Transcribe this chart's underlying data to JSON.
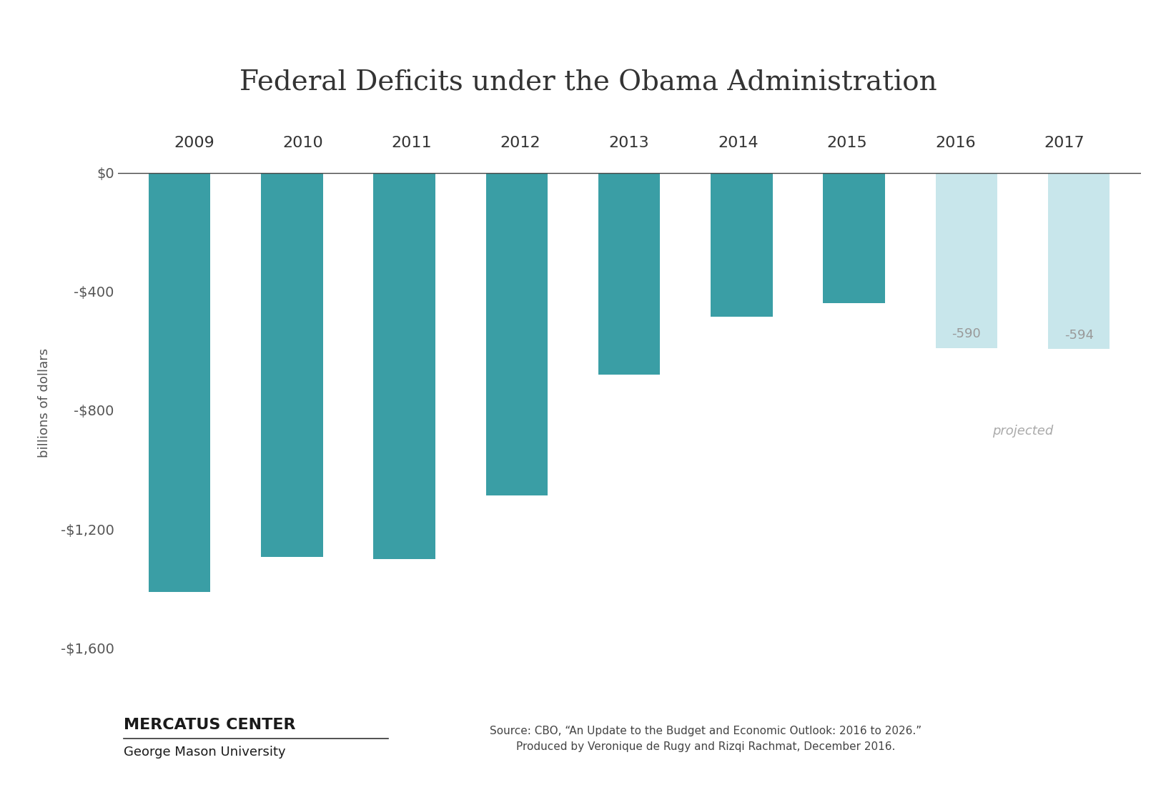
{
  "title": "Federal Deficits under the Obama Administration",
  "years": [
    "2009",
    "2010",
    "2011",
    "2012",
    "2013",
    "2014",
    "2015",
    "2016",
    "2017"
  ],
  "values": [
    -1413,
    -1294,
    -1300,
    -1087,
    -680,
    -485,
    -438,
    -590,
    -594
  ],
  "bar_colors": [
    "#3a9ea5",
    "#3a9ea5",
    "#3a9ea5",
    "#3a9ea5",
    "#3a9ea5",
    "#3a9ea5",
    "#3a9ea5",
    "#c8e6eb",
    "#c8e6eb"
  ],
  "label_colors_dark": "#3a9ea5",
  "label_colors_light": "#999999",
  "ylabel": "billions of dollars",
  "ylim": [
    -1600,
    50
  ],
  "yticks": [
    0,
    -400,
    -800,
    -1200,
    -1600
  ],
  "ytick_labels": [
    "$0",
    "-$400",
    "-$800",
    "-$1,200",
    "-$1,600"
  ],
  "background_color": "#ffffff",
  "projected_label": "projected",
  "source_line1": "Source: CBO, “An Update to the Budget and Economic Outlook: 2016 to 2026.”",
  "source_line2": "Produced by Veronique de Rugy and Rizqi Rachmat, December 2016.",
  "mercatus_name": "MERCATUS CENTER",
  "mercatus_sub": "George Mason University",
  "title_fontsize": 28,
  "label_fontsize": 13,
  "tick_fontsize": 14,
  "ylabel_fontsize": 13,
  "year_fontsize": 16,
  "bar_width": 0.55
}
